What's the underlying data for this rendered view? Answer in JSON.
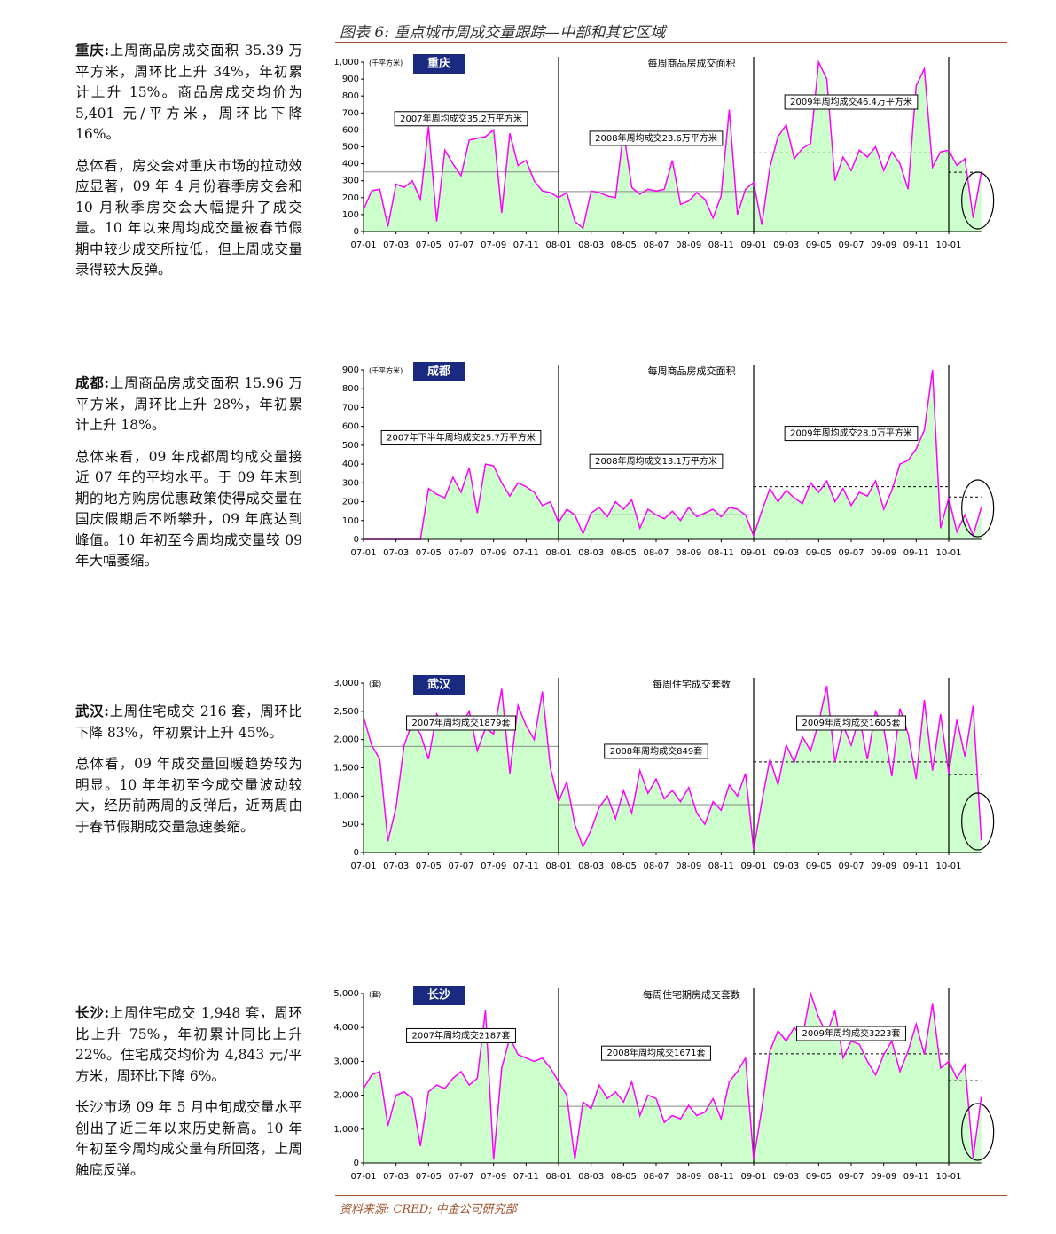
{
  "figure_title": "图表 6: 重点城市周成交量跟踪—中部和其它区域",
  "source": "资料来源: CRED; 中金公司研究部",
  "notes": [
    {
      "lead": "重庆:",
      "paragraphs": [
        "上周商品房成交面积 35.39 万平方米，周环比上升 34%，年初累计上升 15%。商品房成交均价为 5,401 元/平方米，周环比下降 16%。",
        "总体看，房交会对重庆市场的拉动效应显著，09 年 4 月份春季房交会和 10 月秋季房交会大幅提升了成交量。10 年以来周均成交量被春节假期中较少成交所拉低，但上周成交量录得较大反弹。"
      ]
    },
    {
      "lead": "成都:",
      "paragraphs": [
        "上周商品房成交面积 15.96 万平方米，周环比上升 28%，年初累计上升 18%。",
        "总体来看，09 年成都周均成交量接近 07 年的平均水平。于 09 年末到期的地方购房优惠政策使得成交量在国庆假期后不断攀升，09 年底达到峰值。10 年初至今周均成交量较 09 年大幅萎缩。"
      ]
    },
    {
      "lead": "武汉:",
      "paragraphs": [
        "上周住宅成交 216 套，周环比下降 83%，年初累计上升 45%。",
        "总体看，09 年成交量回暖趋势较为明显。10 年年初至今成交量波动较大，经历前两周的反弹后，近两周由于春节假期成交量急速萎缩。"
      ]
    },
    {
      "lead": "长沙:",
      "paragraphs": [
        "上周住宅成交 1,948 套，周环比上升 75%，年初累计同比上升 22%。住宅成交均价为 4,843 元/平方米，周环比下降 6%。",
        "长沙市场 09 年 5 月中旬成交量水平创出了近三年以来历史新高。10 年年初至今周均成交量有所回落，上周触底反弹。"
      ]
    }
  ],
  "chart_data": [
    {
      "type": "area",
      "city": "重庆",
      "title": "每周商品房成交面积",
      "unit": "(千平方米)",
      "color": "#ff00ff",
      "fill": "#ccffcc",
      "categories": [
        "07-01",
        null,
        null,
        null,
        "07-03",
        null,
        null,
        null,
        "07-05",
        null,
        null,
        null,
        "07-07",
        null,
        null,
        null,
        "07-09",
        null,
        null,
        null,
        "07-11",
        null,
        null,
        null,
        "08-01",
        null,
        null,
        null,
        "08-03",
        null,
        null,
        null,
        "08-05",
        null,
        null,
        null,
        "08-07",
        null,
        null,
        null,
        "08-09",
        null,
        null,
        null,
        "08-11",
        null,
        null,
        null,
        "09-01",
        null,
        null,
        null,
        "09-03",
        null,
        null,
        null,
        "09-05",
        null,
        null,
        null,
        "09-07",
        null,
        null,
        null,
        "09-09",
        null,
        null,
        null,
        "09-11",
        null,
        null,
        null,
        "10-01",
        null,
        null,
        null,
        null
      ],
      "values": [
        130,
        240,
        250,
        30,
        280,
        260,
        300,
        190,
        620,
        60,
        480,
        400,
        330,
        540,
        550,
        560,
        600,
        110,
        580,
        390,
        420,
        300,
        240,
        230,
        200,
        230,
        60,
        20,
        240,
        230,
        210,
        200,
        590,
        260,
        220,
        250,
        240,
        250,
        420,
        160,
        180,
        230,
        190,
        80,
        210,
        720,
        100,
        250,
        290,
        40,
        380,
        560,
        630,
        430,
        490,
        520,
        1000,
        900,
        300,
        440,
        360,
        480,
        440,
        500,
        360,
        470,
        400,
        250,
        860,
        960,
        380,
        470,
        480,
        390,
        430,
        80,
        350
      ],
      "ylim": [
        0,
        1000
      ],
      "yticks": [
        0,
        100,
        200,
        300,
        400,
        500,
        600,
        700,
        800,
        900,
        {
          "value": 1000,
          "label": "1,000"
        }
      ],
      "averages": [
        {
          "label": "2007年周均成交35.2万平方米",
          "value": 352,
          "line": "solid"
        },
        {
          "label": "2008年周均成交23.6万平方米",
          "value": 236,
          "line": "solid"
        },
        {
          "label": "2009年周均成交46.4万平方米",
          "value": 464,
          "line": "dotted"
        },
        {
          "value": 350,
          "line": "dotted"
        }
      ]
    },
    {
      "type": "area",
      "city": "成都",
      "title": "每周商品房成交面积",
      "unit": "(千平方米)",
      "color": "#ff00ff",
      "fill": "#ccffcc",
      "categories": [
        "07-01",
        null,
        null,
        null,
        "07-03",
        null,
        null,
        null,
        "07-05",
        null,
        null,
        null,
        "07-07",
        null,
        null,
        null,
        "07-09",
        null,
        null,
        null,
        "07-11",
        null,
        null,
        null,
        "08-01",
        null,
        null,
        null,
        "08-03",
        null,
        null,
        null,
        "08-05",
        null,
        null,
        null,
        "08-07",
        null,
        null,
        null,
        "08-09",
        null,
        null,
        null,
        "08-11",
        null,
        null,
        null,
        "09-01",
        null,
        null,
        null,
        "09-03",
        null,
        null,
        null,
        "09-05",
        null,
        null,
        null,
        "09-07",
        null,
        null,
        null,
        "09-09",
        null,
        null,
        null,
        "09-11",
        null,
        null,
        null,
        "10-01",
        null,
        null,
        null,
        null
      ],
      "values": [
        0,
        0,
        0,
        0,
        0,
        0,
        0,
        0,
        270,
        240,
        220,
        330,
        250,
        380,
        140,
        400,
        390,
        300,
        230,
        300,
        280,
        250,
        180,
        200,
        90,
        160,
        130,
        30,
        140,
        170,
        120,
        200,
        160,
        210,
        60,
        160,
        130,
        110,
        150,
        100,
        170,
        120,
        140,
        160,
        120,
        170,
        160,
        130,
        20,
        150,
        270,
        200,
        260,
        220,
        190,
        300,
        250,
        310,
        200,
        270,
        180,
        250,
        230,
        310,
        160,
        260,
        400,
        420,
        480,
        580,
        900,
        60,
        220,
        40,
        130,
        20,
        170
      ],
      "ylim": [
        0,
        900
      ],
      "yticks": [
        0,
        100,
        200,
        300,
        400,
        500,
        600,
        700,
        800,
        900
      ],
      "averages": [
        {
          "label": "2007年下半年周均成交25.7万平方米",
          "value": 257,
          "line": "solid"
        },
        {
          "label": "2008年周均成交13.1万平方米",
          "value": 131,
          "line": "solid"
        },
        {
          "label": "2009年周均成交28.0万平方米",
          "value": 280,
          "line": "dotted"
        },
        {
          "value": 225,
          "line": "dotted"
        }
      ]
    },
    {
      "type": "area",
      "city": "武汉",
      "title": "每周住宅成交套数",
      "unit": "(套)",
      "color": "#ff00ff",
      "fill": "#ccffcc",
      "categories": [
        "07-01",
        null,
        null,
        null,
        "07-03",
        null,
        null,
        null,
        "07-05",
        null,
        null,
        null,
        "07-07",
        null,
        null,
        null,
        "07-09",
        null,
        null,
        null,
        "07-11",
        null,
        null,
        null,
        "08-01",
        null,
        null,
        null,
        "08-03",
        null,
        null,
        null,
        "08-05",
        null,
        null,
        null,
        "08-07",
        null,
        null,
        null,
        "08-09",
        null,
        null,
        null,
        "08-11",
        null,
        null,
        null,
        "09-01",
        null,
        null,
        null,
        "09-03",
        null,
        null,
        null,
        "09-05",
        null,
        null,
        null,
        "09-07",
        null,
        null,
        null,
        "09-09",
        null,
        null,
        null,
        "09-11",
        null,
        null,
        null,
        "10-01",
        null,
        null,
        null,
        null
      ],
      "values": [
        2400,
        1900,
        1650,
        200,
        800,
        1900,
        2300,
        2100,
        1650,
        2450,
        2200,
        2400,
        2250,
        2500,
        1800,
        2200,
        2100,
        2900,
        1400,
        2600,
        2250,
        2000,
        2850,
        1500,
        900,
        1250,
        500,
        100,
        400,
        800,
        1000,
        600,
        1100,
        700,
        1450,
        1050,
        1300,
        950,
        1100,
        900,
        1150,
        700,
        500,
        900,
        750,
        1200,
        1000,
        1400,
        50,
        900,
        1650,
        1200,
        1900,
        1600,
        2050,
        1800,
        2300,
        2950,
        1600,
        2250,
        1900,
        2400,
        1650,
        2500,
        2200,
        1350,
        2550,
        2100,
        1300,
        2700,
        1450,
        2450,
        1400,
        2350,
        1700,
        2600,
        216
      ],
      "ylim": [
        0,
        3000
      ],
      "yticks": [
        0,
        500,
        {
          "value": 1000,
          "label": "1,000"
        },
        {
          "value": 1500,
          "label": "1,500"
        },
        {
          "value": 2000,
          "label": "2,000"
        },
        {
          "value": 2500,
          "label": "2,500"
        },
        {
          "value": 3000,
          "label": "3,000"
        }
      ],
      "averages": [
        {
          "label": "2007年周均成交1879套",
          "value": 1879,
          "line": "solid"
        },
        {
          "label": "2008年周均成交849套",
          "value": 849,
          "line": "solid"
        },
        {
          "label": "2009年周均成交1605套",
          "value": 1605,
          "line": "dotted"
        },
        {
          "value": 1380,
          "line": "dotted"
        }
      ]
    },
    {
      "type": "area",
      "city": "长沙",
      "title": "每周住宅期房成交套数",
      "unit": "(套)",
      "color": "#ff00ff",
      "fill": "#ccffcc",
      "categories": [
        "07-01",
        null,
        null,
        null,
        "07-03",
        null,
        null,
        null,
        "07-05",
        null,
        null,
        null,
        "07-07",
        null,
        null,
        null,
        "07-09",
        null,
        null,
        null,
        "07-11",
        null,
        null,
        null,
        "08-01",
        null,
        null,
        null,
        "08-03",
        null,
        null,
        null,
        "08-05",
        null,
        null,
        null,
        "08-07",
        null,
        null,
        null,
        "08-09",
        null,
        null,
        null,
        "08-11",
        null,
        null,
        null,
        "09-01",
        null,
        null,
        null,
        "09-03",
        null,
        null,
        null,
        "09-05",
        null,
        null,
        null,
        "09-07",
        null,
        null,
        null,
        "09-09",
        null,
        null,
        null,
        "09-11",
        null,
        null,
        null,
        "10-01",
        null,
        null,
        null,
        null
      ],
      "values": [
        2200,
        2600,
        2700,
        1100,
        2000,
        2100,
        1900,
        500,
        2100,
        2300,
        2200,
        2500,
        2700,
        2300,
        2500,
        4500,
        100,
        2800,
        3700,
        3200,
        3100,
        3000,
        3100,
        2800,
        2400,
        2000,
        100,
        1800,
        1600,
        2300,
        1900,
        2100,
        1800,
        2400,
        1400,
        2000,
        1900,
        1200,
        1400,
        1300,
        1700,
        1400,
        1500,
        1900,
        1300,
        2400,
        2700,
        3100,
        100,
        1600,
        3300,
        3900,
        3600,
        4000,
        3700,
        5000,
        4300,
        3800,
        4500,
        3100,
        3600,
        3500,
        3000,
        2600,
        3200,
        3600,
        2700,
        3300,
        4100,
        3200,
        4700,
        2800,
        3000,
        2500,
        2900,
        150,
        1948
      ],
      "ylim": [
        0,
        5000
      ],
      "yticks": [
        0,
        {
          "value": 1000,
          "label": "1,000"
        },
        {
          "value": 2000,
          "label": "2,000"
        },
        {
          "value": 3000,
          "label": "3,000"
        },
        {
          "value": 4000,
          "label": "4,000"
        },
        {
          "value": 5000,
          "label": "5,000"
        }
      ],
      "averages": [
        {
          "label": "2007年周均成交2187套",
          "value": 2187,
          "line": "solid"
        },
        {
          "label": "2008年周均成交1671套",
          "value": 1671,
          "line": "solid"
        },
        {
          "label": "2009年周均成交3223套",
          "value": 3223,
          "line": "dotted"
        },
        {
          "value": 2430,
          "line": "dotted"
        }
      ]
    }
  ]
}
